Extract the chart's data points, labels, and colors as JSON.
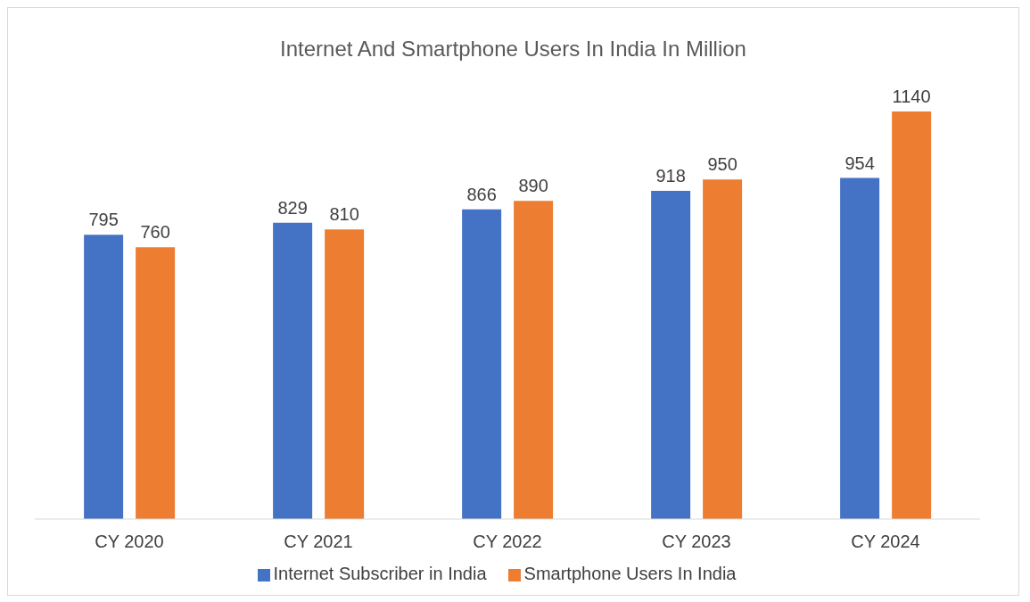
{
  "chart_data": {
    "type": "bar",
    "title": "Internet And Smartphone Users In India In Million",
    "categories": [
      "CY 2020",
      "CY 2021",
      "CY 2022",
      "CY 2023",
      "CY 2024"
    ],
    "series": [
      {
        "name": "Internet Subscriber in India",
        "color": "#4472c4",
        "values": [
          795,
          829,
          866,
          918,
          954
        ]
      },
      {
        "name": "Smartphone Users In India",
        "color": "#ed7d31",
        "values": [
          760,
          810,
          890,
          950,
          1140
        ]
      }
    ],
    "data_labels": true,
    "grid": false,
    "legend": "bottom"
  }
}
